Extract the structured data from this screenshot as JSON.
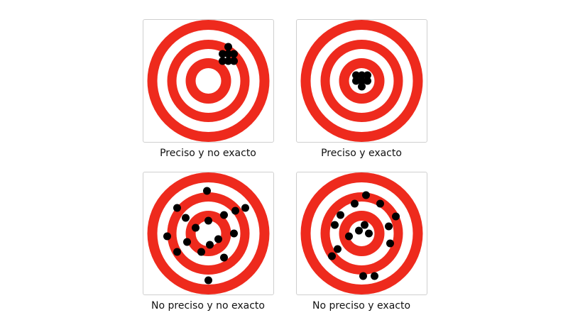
{
  "colors": {
    "ring": "#ee2a1d",
    "gap": "#ffffff",
    "shot": "#000000"
  },
  "targets": [
    {
      "label": "Preciso y no exacto",
      "shots": [
        [
          28,
          -48
        ],
        [
          20,
          -38
        ],
        [
          36,
          -38
        ],
        [
          28,
          -38
        ],
        [
          20,
          -28
        ],
        [
          28,
          -28
        ],
        [
          36,
          -28
        ]
      ]
    },
    {
      "label": "Preciso y exacto",
      "shots": [
        [
          -8,
          -8
        ],
        [
          0,
          -8
        ],
        [
          8,
          -8
        ],
        [
          -8,
          0
        ],
        [
          0,
          0
        ],
        [
          8,
          0
        ],
        [
          0,
          8
        ]
      ]
    },
    {
      "label": "No preciso y no exacto",
      "shots": [
        [
          -2,
          -60
        ],
        [
          -44,
          -36
        ],
        [
          -32,
          -22
        ],
        [
          -18,
          -8
        ],
        [
          22,
          -26
        ],
        [
          38,
          -32
        ],
        [
          52,
          -36
        ],
        [
          0,
          -18
        ],
        [
          36,
          0
        ],
        [
          -58,
          4
        ],
        [
          -30,
          12
        ],
        [
          14,
          8
        ],
        [
          2,
          16
        ],
        [
          -44,
          26
        ],
        [
          -10,
          26
        ],
        [
          22,
          34
        ],
        [
          0,
          66
        ]
      ]
    },
    {
      "label": "No preciso y exacto",
      "shots": [
        [
          6,
          -54
        ],
        [
          -10,
          -42
        ],
        [
          26,
          -42
        ],
        [
          -30,
          -26
        ],
        [
          48,
          -24
        ],
        [
          4,
          -12
        ],
        [
          -38,
          -12
        ],
        [
          38,
          -10
        ],
        [
          -4,
          -4
        ],
        [
          10,
          0
        ],
        [
          -18,
          4
        ],
        [
          40,
          14
        ],
        [
          -34,
          22
        ],
        [
          -42,
          32
        ],
        [
          2,
          60
        ],
        [
          18,
          60
        ]
      ]
    }
  ]
}
